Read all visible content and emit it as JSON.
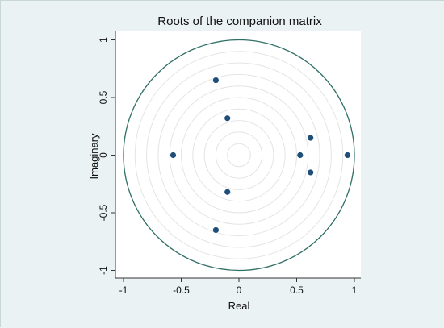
{
  "chart_data": {
    "type": "scatter",
    "title": "Roots of the companion matrix",
    "xlabel": "Real",
    "ylabel": "Imaginary",
    "xlim": [
      -1,
      1
    ],
    "ylim": [
      -1,
      1
    ],
    "x_ticks": [
      -1,
      -0.5,
      0,
      0.5,
      1
    ],
    "y_ticks": [
      -1,
      -0.5,
      0,
      0.5,
      1
    ],
    "x_tick_labels": [
      "-1",
      "-0.5",
      "0",
      "0.5",
      "1"
    ],
    "y_tick_labels": [
      "-1",
      "-0.5",
      "0",
      "0.5",
      "1"
    ],
    "grid": "concentric circles",
    "unit_circle": true,
    "colors": {
      "background": "#eaf2f3",
      "plot_area": "#ffffff",
      "unit_circle": "#2f6f66",
      "grid_circles": "#e4e4e4",
      "points": "#1f4e79"
    },
    "points": [
      {
        "x": -0.2,
        "y": 0.65
      },
      {
        "x": -0.2,
        "y": -0.65
      },
      {
        "x": -0.1,
        "y": 0.32
      },
      {
        "x": -0.1,
        "y": -0.32
      },
      {
        "x": -0.57,
        "y": 0.0
      },
      {
        "x": 0.53,
        "y": 0.0
      },
      {
        "x": 0.94,
        "y": 0.0
      },
      {
        "x": 0.62,
        "y": 0.15
      },
      {
        "x": 0.62,
        "y": -0.15
      }
    ]
  }
}
